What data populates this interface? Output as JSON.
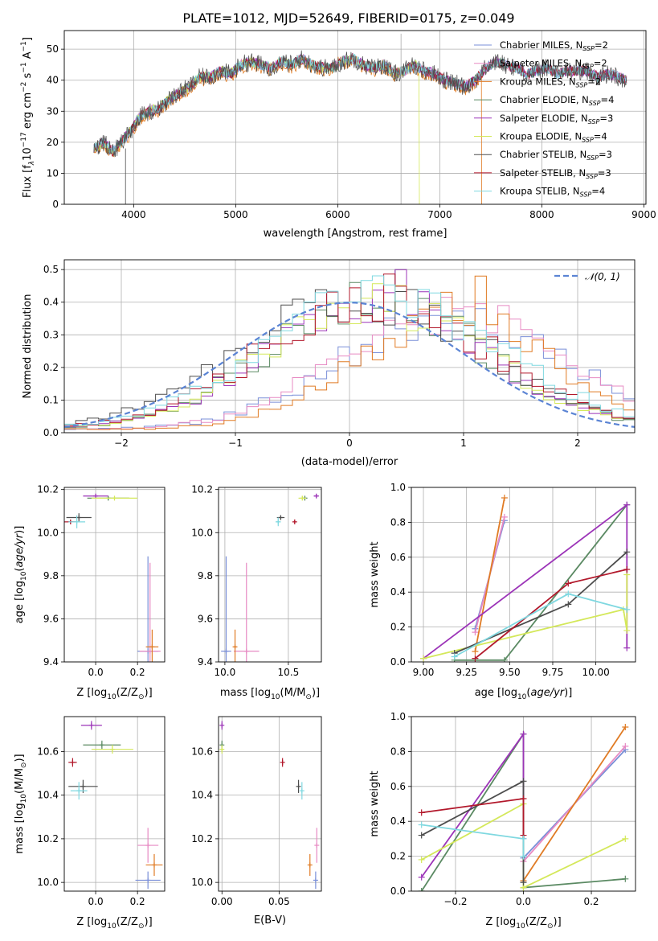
{
  "title": "PLATE=1012, MJD=52649, FIBERID=0175, z=0.049",
  "models": [
    {
      "id": "chab_miles",
      "label": "Chabrier MILES, N",
      "sub": "SSP",
      "suffix": "=2",
      "color": "#7a8fd8"
    },
    {
      "id": "salp_miles",
      "label": "Salpeter MILES, N",
      "sub": "SSP",
      "suffix": "=2",
      "color": "#e78ac3"
    },
    {
      "id": "krou_miles",
      "label": "Kroupa MILES, N",
      "sub": "SSP",
      "suffix": "=2",
      "color": "#e07b24"
    },
    {
      "id": "chab_elodie",
      "label": "Chabrier ELODIE, N",
      "sub": "SSP",
      "suffix": "=4",
      "color": "#5b8a63"
    },
    {
      "id": "salp_elodie",
      "label": "Salpeter ELODIE, N",
      "sub": "SSP",
      "suffix": "=3",
      "color": "#9c34b8"
    },
    {
      "id": "krou_elodie",
      "label": "Kroupa ELODIE, N",
      "sub": "SSP",
      "suffix": "=4",
      "color": "#d4e85a"
    },
    {
      "id": "chab_stelib",
      "label": "Chabrier STELIB, N",
      "sub": "SSP",
      "suffix": "=3",
      "color": "#4d4d4d"
    },
    {
      "id": "salp_stelib",
      "label": "Salpeter STELIB, N",
      "sub": "SSP",
      "suffix": "=3",
      "color": "#b2182b"
    },
    {
      "id": "krou_stelib",
      "label": "Kroupa STELIB, N",
      "sub": "SSP",
      "suffix": "=4",
      "color": "#7fd8e0"
    }
  ],
  "chart_data": [
    {
      "type": "line",
      "name": "spectrum",
      "xlabel": "wavelength [Angstrom, rest frame]",
      "ylabel": "Flux [f",
      "xlim": [
        3320,
        9020
      ],
      "ylim": [
        0,
        56
      ],
      "xticks": [
        4000,
        5000,
        6000,
        7000,
        8000,
        9000
      ],
      "yticks": [
        0,
        10,
        20,
        30,
        40,
        50
      ],
      "legend": "upper-right",
      "continuum": {
        "x": [
          3610,
          3700,
          3800,
          3900,
          3980,
          4050,
          4150,
          4250,
          4350,
          4450,
          4550,
          4650,
          4750,
          4850,
          4950,
          5050,
          5150,
          5250,
          5350,
          5450,
          5550,
          5650,
          5750,
          5850,
          5950,
          6050,
          6150,
          6250,
          6350,
          6450,
          6550,
          6650,
          6750,
          6850,
          6950,
          7050,
          7150,
          7250,
          7350,
          7450,
          7550,
          7650,
          7750,
          7850,
          7950,
          8050,
          8150,
          8250,
          8350,
          8450,
          8550,
          8650,
          8750,
          8830
        ],
        "y": [
          18,
          20,
          17,
          21,
          24,
          28,
          30,
          31,
          34,
          36,
          38,
          41,
          41,
          43,
          42,
          45,
          46,
          45,
          44,
          46,
          45,
          47,
          45,
          44,
          44,
          46,
          47,
          45,
          44,
          45,
          42,
          43,
          45,
          43,
          42,
          40,
          39,
          38,
          40,
          44,
          46,
          45,
          44,
          42,
          43,
          44,
          42,
          43,
          43,
          43,
          41,
          42,
          41,
          40
        ]
      },
      "dropouts": [
        {
          "x": 3920,
          "y": 0
        },
        {
          "x": 6800,
          "y": 0
        },
        {
          "x": 7410,
          "y": 0
        }
      ]
    },
    {
      "type": "histogram",
      "name": "residuals",
      "xlabel": "(data-model)/error",
      "ylabel": "Normed distribution",
      "xlim": [
        -2.5,
        2.5
      ],
      "ylim": [
        0,
        0.53
      ],
      "xticks": [
        -2,
        -1,
        0,
        1,
        2
      ],
      "yticks": [
        0.0,
        0.1,
        0.2,
        0.3,
        0.4,
        0.5
      ],
      "legend": "upper-right",
      "gaussian_label": "𝒩(0, 1)",
      "bin_width": 0.1
    },
    {
      "type": "scatter",
      "name": "age_vs_Z",
      "xlabel": "Z [log",
      "ylabel": "age [log",
      "xlim": [
        -0.15,
        0.33
      ],
      "ylim": [
        9.4,
        10.21
      ],
      "xticks": [
        0.0,
        0.2
      ],
      "yticks": [
        9.4,
        9.6,
        9.8,
        10.0,
        10.2
      ],
      "points": [
        {
          "m": 0,
          "x": 0.25,
          "y": 9.45,
          "ex": 0.05,
          "ey": 0.44
        },
        {
          "m": 1,
          "x": 0.26,
          "y": 9.45,
          "ex": 0.05,
          "ey": 0.41
        },
        {
          "m": 2,
          "x": 0.27,
          "y": 9.47,
          "ex": 0.03,
          "ey": 0.08
        },
        {
          "m": 3,
          "x": 0.06,
          "y": 10.16,
          "ex": 0.1,
          "ey": 0.01
        },
        {
          "m": 4,
          "x": 0.0,
          "y": 10.17,
          "ex": 0.06,
          "ey": 0.01
        },
        {
          "m": 5,
          "x": 0.09,
          "y": 10.16,
          "ex": 0.11,
          "ey": 0.01
        },
        {
          "m": 6,
          "x": -0.08,
          "y": 10.07,
          "ex": 0.06,
          "ey": 0.02
        },
        {
          "m": 7,
          "x": -0.12,
          "y": 10.05,
          "ex": 0.03,
          "ey": 0.01
        },
        {
          "m": 8,
          "x": -0.09,
          "y": 10.05,
          "ex": 0.04,
          "ey": 0.03
        }
      ]
    },
    {
      "type": "scatter",
      "name": "age_vs_mass",
      "xlabel": "mass [log",
      "xlim": [
        9.95,
        10.76
      ],
      "ylim": [
        9.4,
        10.21
      ],
      "xticks": [
        10.0,
        10.5
      ],
      "yticks": [
        9.4,
        9.6,
        9.8,
        10.0,
        10.2
      ],
      "points": [
        {
          "m": 0,
          "x": 10.01,
          "y": 9.45,
          "ex": 0.04,
          "ey": 0.44
        },
        {
          "m": 1,
          "x": 10.17,
          "y": 9.45,
          "ex": 0.1,
          "ey": 0.41
        },
        {
          "m": 2,
          "x": 10.08,
          "y": 9.47,
          "ex": 0.01,
          "ey": 0.08
        },
        {
          "m": 3,
          "x": 10.63,
          "y": 10.16,
          "ex": 0.02,
          "ey": 0.01
        },
        {
          "m": 4,
          "x": 10.72,
          "y": 10.17,
          "ex": 0.02,
          "ey": 0.01
        },
        {
          "m": 5,
          "x": 10.61,
          "y": 10.16,
          "ex": 0.03,
          "ey": 0.01
        },
        {
          "m": 6,
          "x": 10.44,
          "y": 10.07,
          "ex": 0.03,
          "ey": 0.01
        },
        {
          "m": 7,
          "x": 10.55,
          "y": 10.05,
          "ex": 0.01,
          "ey": 0.01
        },
        {
          "m": 8,
          "x": 10.42,
          "y": 10.05,
          "ex": 0.02,
          "ey": 0.02
        }
      ]
    },
    {
      "type": "line",
      "name": "weight_vs_age",
      "xlabel": "age [log",
      "ylabel": "mass weight",
      "xlim": [
        8.93,
        10.23
      ],
      "ylim": [
        0,
        1.0
      ],
      "xticks": [
        9.0,
        9.25,
        9.5,
        9.75,
        10.0
      ],
      "yticks": [
        0.0,
        0.2,
        0.4,
        0.6,
        0.8,
        1.0
      ],
      "series": [
        {
          "m": 0,
          "x": [
            9.3,
            9.47
          ],
          "y": [
            0.19,
            0.81
          ]
        },
        {
          "m": 1,
          "x": [
            9.3,
            9.47
          ],
          "y": [
            0.17,
            0.83
          ]
        },
        {
          "m": 2,
          "x": [
            9.3,
            9.47
          ],
          "y": [
            0.06,
            0.94
          ]
        },
        {
          "m": 3,
          "x": [
            9.18,
            9.47,
            10.18
          ],
          "y": [
            0.01,
            0.01,
            0.9
          ]
        },
        {
          "m": 4,
          "x": [
            9.0,
            10.18,
            10.18
          ],
          "y": [
            0.02,
            0.9,
            0.08
          ]
        },
        {
          "m": 5,
          "x": [
            9.0,
            10.16,
            10.18,
            10.18
          ],
          "y": [
            0.02,
            0.3,
            0.18,
            0.5
          ]
        },
        {
          "m": 6,
          "x": [
            9.18,
            9.84,
            10.18
          ],
          "y": [
            0.05,
            0.33,
            0.63
          ]
        },
        {
          "m": 7,
          "x": [
            9.3,
            9.84,
            10.18
          ],
          "y": [
            0.02,
            0.45,
            0.53
          ]
        },
        {
          "m": 8,
          "x": [
            9.18,
            9.84,
            10.18
          ],
          "y": [
            0.03,
            0.39,
            0.3
          ]
        }
      ]
    },
    {
      "type": "scatter",
      "name": "mass_vs_Z",
      "xlabel": "Z [log",
      "ylabel": "mass [log",
      "xlim": [
        -0.15,
        0.33
      ],
      "ylim": [
        9.96,
        10.76
      ],
      "xticks": [
        0.0,
        0.2
      ],
      "yticks": [
        10.0,
        10.2,
        10.4,
        10.6
      ],
      "points": [
        {
          "m": 0,
          "x": 0.25,
          "y": 10.01,
          "ex": 0.06,
          "ey": 0.04
        },
        {
          "m": 1,
          "x": 0.25,
          "y": 10.17,
          "ex": 0.05,
          "ey": 0.08
        },
        {
          "m": 2,
          "x": 0.28,
          "y": 10.08,
          "ex": 0.04,
          "ey": 0.05
        },
        {
          "m": 3,
          "x": 0.03,
          "y": 10.63,
          "ex": 0.09,
          "ey": 0.02
        },
        {
          "m": 4,
          "x": -0.02,
          "y": 10.72,
          "ex": 0.05,
          "ey": 0.02
        },
        {
          "m": 5,
          "x": 0.08,
          "y": 10.61,
          "ex": 0.1,
          "ey": 0.02
        },
        {
          "m": 6,
          "x": -0.06,
          "y": 10.44,
          "ex": 0.07,
          "ey": 0.03
        },
        {
          "m": 7,
          "x": -0.11,
          "y": 10.55,
          "ex": 0.02,
          "ey": 0.02
        },
        {
          "m": 8,
          "x": -0.08,
          "y": 10.42,
          "ex": 0.04,
          "ey": 0.04
        }
      ]
    },
    {
      "type": "scatter",
      "name": "mass_vs_ebv",
      "xlabel": "E(B-V)",
      "xlim": [
        -0.003,
        0.087
      ],
      "ylim": [
        9.96,
        10.76
      ],
      "xticks": [
        0.0,
        0.05
      ],
      "yticks": [
        10.0,
        10.2,
        10.4,
        10.6
      ],
      "points": [
        {
          "m": 0,
          "x": 0.082,
          "y": 10.01,
          "ex": 0,
          "ey": 0.04
        },
        {
          "m": 1,
          "x": 0.083,
          "y": 10.17,
          "ex": 0,
          "ey": 0.08
        },
        {
          "m": 2,
          "x": 0.077,
          "y": 10.08,
          "ex": 0,
          "ey": 0.05
        },
        {
          "m": 3,
          "x": 0.0,
          "y": 10.63,
          "ex": 0,
          "ey": 0.02
        },
        {
          "m": 4,
          "x": 0.0,
          "y": 10.72,
          "ex": 0,
          "ey": 0.02
        },
        {
          "m": 5,
          "x": 0.0,
          "y": 10.61,
          "ex": 0,
          "ey": 0.02
        },
        {
          "m": 6,
          "x": 0.067,
          "y": 10.44,
          "ex": 0,
          "ey": 0.03
        },
        {
          "m": 7,
          "x": 0.053,
          "y": 10.55,
          "ex": 0,
          "ey": 0.02
        },
        {
          "m": 8,
          "x": 0.07,
          "y": 10.42,
          "ex": 0,
          "ey": 0.04
        }
      ]
    },
    {
      "type": "line",
      "name": "weight_vs_Z",
      "xlabel": "Z [log",
      "ylabel": "mass weight",
      "xlim": [
        -0.33,
        0.33
      ],
      "ylim": [
        0,
        1.0
      ],
      "xticks": [
        -0.2,
        0.0,
        0.2
      ],
      "yticks": [
        0.0,
        0.2,
        0.4,
        0.6,
        0.8,
        1.0
      ],
      "series": [
        {
          "m": 0,
          "x": [
            0.0,
            0.3
          ],
          "y": [
            0.19,
            0.81
          ]
        },
        {
          "m": 1,
          "x": [
            0.0,
            0.3
          ],
          "y": [
            0.17,
            0.83
          ]
        },
        {
          "m": 2,
          "x": [
            0.0,
            0.3
          ],
          "y": [
            0.06,
            0.94
          ]
        },
        {
          "m": 3,
          "x": [
            -0.3,
            0.0,
            0.0,
            0.3
          ],
          "y": [
            0.0,
            0.9,
            0.02,
            0.07
          ]
        },
        {
          "m": 4,
          "x": [
            -0.3,
            0.0,
            0.0
          ],
          "y": [
            0.08,
            0.9,
            0.3
          ]
        },
        {
          "m": 5,
          "x": [
            -0.3,
            0.0,
            0.0,
            0.3
          ],
          "y": [
            0.18,
            0.5,
            0.02,
            0.3
          ]
        },
        {
          "m": 6,
          "x": [
            -0.3,
            0.0,
            0.0
          ],
          "y": [
            0.32,
            0.63,
            0.05
          ]
        },
        {
          "m": 7,
          "x": [
            -0.3,
            0.0,
            0.0
          ],
          "y": [
            0.45,
            0.53,
            0.32
          ]
        },
        {
          "m": 8,
          "x": [
            -0.3,
            0.0,
            0.0
          ],
          "y": [
            0.38,
            0.3,
            0.2
          ]
        }
      ]
    }
  ]
}
